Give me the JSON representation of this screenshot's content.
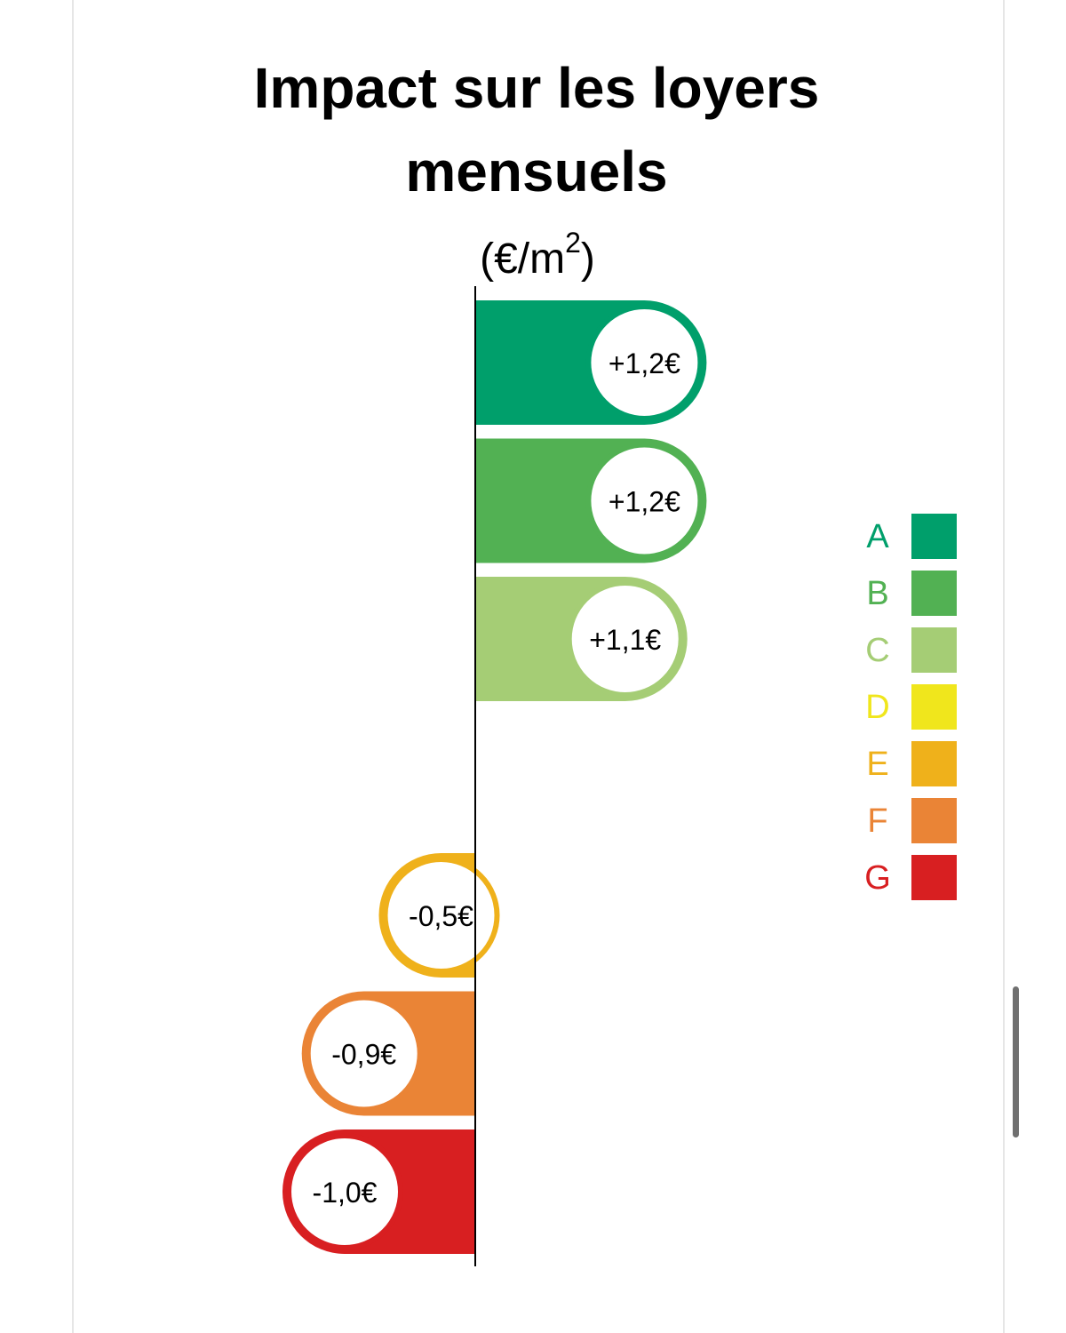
{
  "title": "Impact sur les loyers mensuels",
  "unit_label": {
    "base": "(€/m",
    "exp": "2",
    "close": ")"
  },
  "chart_data": {
    "type": "bar",
    "orientation": "horizontal",
    "title": "Impact sur les loyers mensuels",
    "unit": "(€/m²)",
    "categories": [
      "A",
      "B",
      "C",
      "D",
      "E",
      "F",
      "G"
    ],
    "values": [
      1.2,
      1.2,
      1.1,
      null,
      -0.5,
      -0.9,
      -1.0
    ],
    "value_labels": [
      "+1,2€",
      "+1,2€",
      "+1,1€",
      "",
      "-0,5€",
      "-0,9€",
      "-1,0€"
    ],
    "colors": [
      "#009f6b",
      "#52b153",
      "#a5cd75",
      "#f0e61c",
      "#efb11b",
      "#ea8436",
      "#d81f21"
    ],
    "legend_position": "right",
    "grid": false
  }
}
